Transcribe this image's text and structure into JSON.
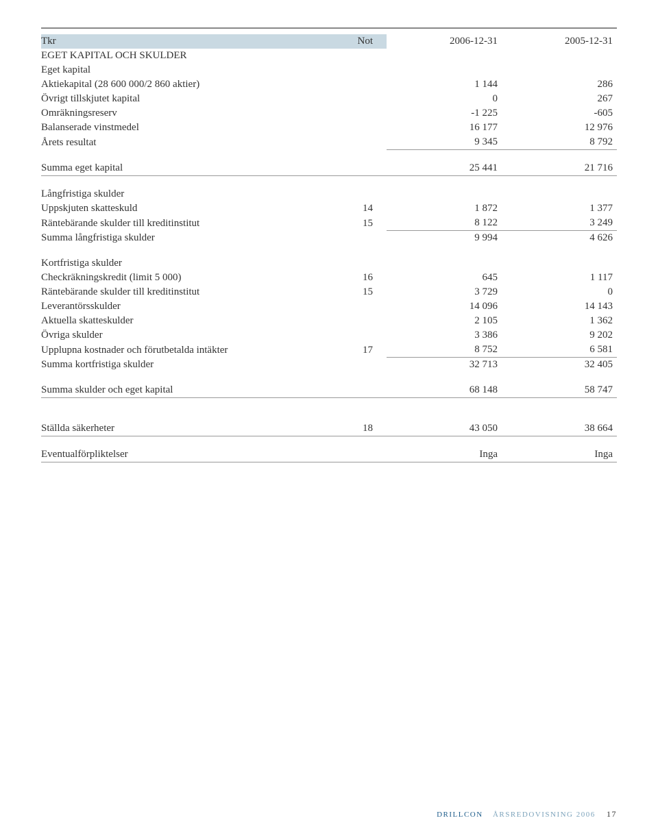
{
  "columns": {
    "label": "Tkr",
    "note": "Not",
    "col1": "2006-12-31",
    "col2": "2005-12-31"
  },
  "sections": {
    "eget_kapital_header": "EGET KAPITAL OCH SKULDER",
    "eget_kapital_sub": "Eget kapital",
    "langfristiga_header": "Långfristiga skulder",
    "kortfristiga_header": "Kortfristiga skulder"
  },
  "rows": {
    "aktiekapital": {
      "label": "Aktiekapital (28 600 000/2 860 aktier)",
      "note": "",
      "v1": "1 144",
      "v2": "286"
    },
    "ovrigt_tillskjutet": {
      "label": "Övrigt tillskjutet kapital",
      "note": "",
      "v1": "0",
      "v2": "267"
    },
    "omrakningsreserv": {
      "label": "Omräkningsreserv",
      "note": "",
      "v1": "-1 225",
      "v2": "-605"
    },
    "balanserade": {
      "label": "Balanserade vinstmedel",
      "note": "",
      "v1": "16 177",
      "v2": "12 976"
    },
    "arets_resultat": {
      "label": "Årets resultat",
      "note": "",
      "v1": "9 345",
      "v2": "8 792"
    },
    "summa_eget_kapital": {
      "label": "Summa eget kapital",
      "note": "",
      "v1": "25 441",
      "v2": "21 716"
    },
    "uppskjuten_skatt": {
      "label": "Uppskjuten skatteskuld",
      "note": "14",
      "v1": "1 872",
      "v2": "1 377"
    },
    "rantebarande_lang": {
      "label": "Räntebärande skulder till kreditinstitut",
      "note": "15",
      "v1": "8 122",
      "v2": "3 249"
    },
    "summa_langfristiga": {
      "label": "Summa långfristiga skulder",
      "note": "",
      "v1": "9 994",
      "v2": "4 626"
    },
    "checkrakning": {
      "label": "Checkräkningskredit (limit 5 000)",
      "note": "16",
      "v1": "645",
      "v2": "1 117"
    },
    "rantebarande_kort": {
      "label": "Räntebärande skulder till kreditinstitut",
      "note": "15",
      "v1": "3 729",
      "v2": "0"
    },
    "leverantor": {
      "label": "Leverantörsskulder",
      "note": "",
      "v1": "14 096",
      "v2": "14 143"
    },
    "aktuella_skatt": {
      "label": "Aktuella skatteskulder",
      "note": "",
      "v1": "2 105",
      "v2": "1 362"
    },
    "ovriga_skulder": {
      "label": "Övriga skulder",
      "note": "",
      "v1": "3 386",
      "v2": "9 202"
    },
    "upplupna": {
      "label": "Upplupna kostnader och förutbetalda intäkter",
      "note": "17",
      "v1": "8 752",
      "v2": "6 581"
    },
    "summa_kortfristiga": {
      "label": "Summa kortfristiga skulder",
      "note": "",
      "v1": "32 713",
      "v2": "32 405"
    },
    "summa_skulder_eget": {
      "label": "Summa skulder och eget kapital",
      "note": "",
      "v1": "68 148",
      "v2": "58 747"
    },
    "stallda": {
      "label": "Ställda säkerheter",
      "note": "18",
      "v1": "43 050",
      "v2": "38 664"
    },
    "eventual": {
      "label": "Eventualförpliktelser",
      "note": "",
      "v1": "Inga",
      "v2": "Inga"
    }
  },
  "footer": {
    "brand": "DRILLCON",
    "report": "ÅRSREDOVISNING 2006",
    "page": "17"
  },
  "colors": {
    "header_bg": "#c9d9e2",
    "rule": "#888888",
    "text": "#333333",
    "footer_brand": "#205e8c",
    "footer_sub": "#7da3bb",
    "background": "#ffffff"
  }
}
